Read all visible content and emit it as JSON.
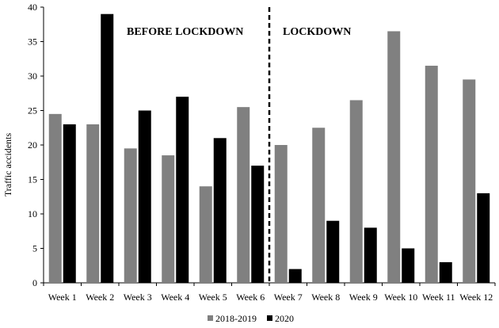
{
  "chart_data": {
    "type": "bar",
    "ylabel": "Traffic accidents",
    "ylim": [
      0,
      40
    ],
    "yticks": [
      0,
      5,
      10,
      15,
      20,
      25,
      30,
      35,
      40
    ],
    "grid": false,
    "legend_position": "bottom",
    "categories": [
      "Week 1",
      "Week 2",
      "Week 3",
      "Week 4",
      "Week 5",
      "Week 6",
      "Week 7",
      "Week 8",
      "Week 9",
      "Week 10",
      "Week 11",
      "Week 12"
    ],
    "series": [
      {
        "name": "2018-2019",
        "color": "#808080",
        "values": [
          24.5,
          23,
          19.5,
          18.5,
          14,
          25.5,
          20,
          22.5,
          26.5,
          36.5,
          31.5,
          29.5
        ]
      },
      {
        "name": "2020",
        "color": "#000000",
        "values": [
          23,
          39,
          25,
          27,
          21,
          17,
          2,
          9,
          8,
          5,
          3,
          13
        ]
      }
    ],
    "annotations": [
      "BEFORE LOCKDOWN",
      "LOCKDOWN"
    ],
    "divider_after_category": "Week 6"
  }
}
